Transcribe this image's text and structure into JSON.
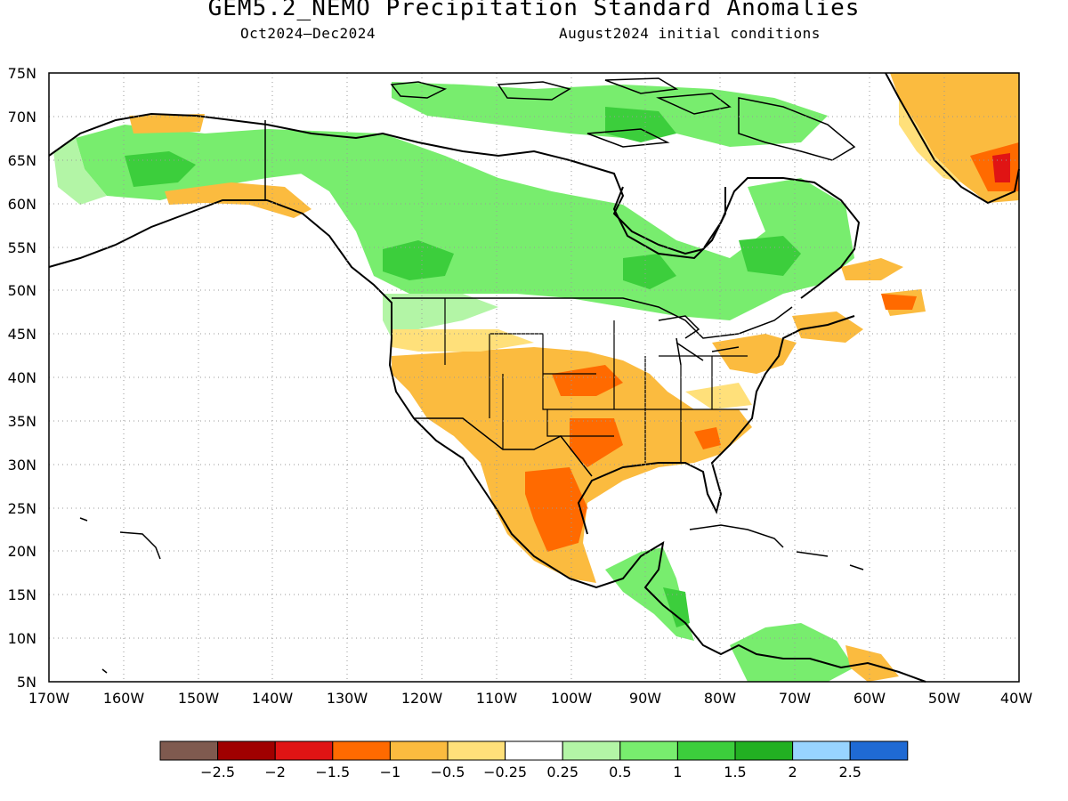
{
  "title": "GEM5.2_NEMO Precipitation Standard Anomalies",
  "subtitle_left": "Oct2024–Dec2024",
  "subtitle_right": "August2024 initial conditions",
  "map": {
    "lat_labels": [
      "75N",
      "70N",
      "65N",
      "60N",
      "55N",
      "50N",
      "45N",
      "40N",
      "35N",
      "30N",
      "25N",
      "20N",
      "15N",
      "10N",
      "5N"
    ],
    "lon_labels": [
      "170W",
      "160W",
      "150W",
      "140W",
      "130W",
      "120W",
      "110W",
      "100W",
      "90W",
      "80W",
      "70W",
      "60W",
      "50W",
      "40W"
    ],
    "lon_range": [
      -170,
      -40
    ],
    "lat_range": [
      5,
      75
    ],
    "grid": "dotted"
  },
  "colorbar": {
    "colors": [
      "#7f5a4f",
      "#a00000",
      "#e01414",
      "#ff6a00",
      "#fbbb3f",
      "#ffe07a",
      "#ffffff",
      "#b3f5a6",
      "#78ed6e",
      "#3cce3c",
      "#22b022",
      "#98d4ff",
      "#1f6ad4"
    ],
    "labels": [
      "−2.5",
      "−2",
      "−1.5",
      "−1",
      "−0.5",
      "−0.25",
      "0.25",
      "0.5",
      "1",
      "1.5",
      "2",
      "2.5"
    ]
  }
}
